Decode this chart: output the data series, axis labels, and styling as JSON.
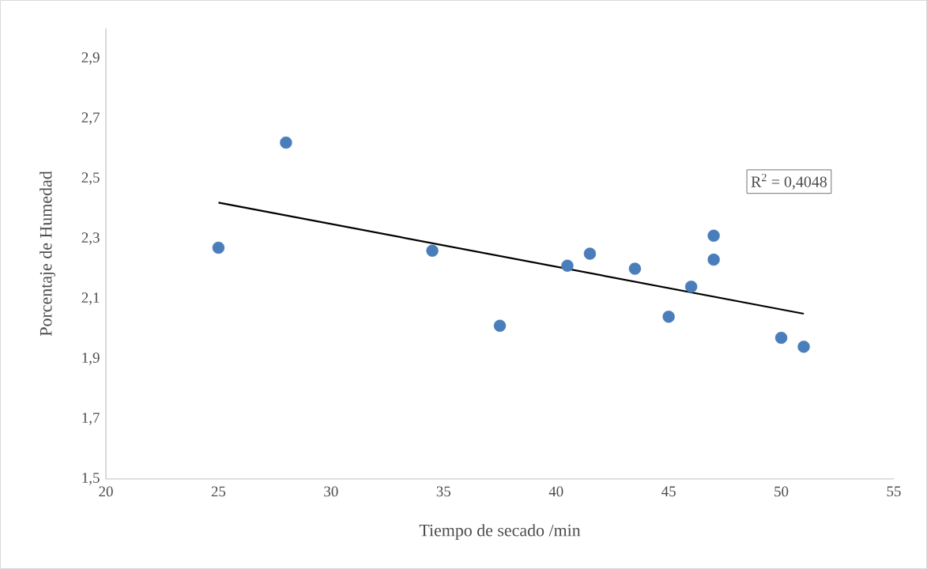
{
  "chart_data": {
    "type": "scatter",
    "xlabel": "Tiempo de secado /min",
    "ylabel": "Porcentaje de Humedad",
    "series": [
      {
        "color": "#4a7ebb",
        "marker": "circle",
        "x": [
          25,
          28,
          34.5,
          37.5,
          40.5,
          41.5,
          43.5,
          45,
          46,
          47,
          47,
          50,
          51
        ],
        "values": [
          2.27,
          2.62,
          2.26,
          2.01,
          2.21,
          2.25,
          2.2,
          2.04,
          2.14,
          2.31,
          2.23,
          1.97,
          1.94
        ]
      },
      {
        "type": "line",
        "color": "#000000",
        "marker": "none",
        "x": [
          25,
          51
        ],
        "values": [
          2.42,
          2.05
        ]
      }
    ],
    "annotations": [
      "R$^{2}$ = 0,4048"
    ],
    "xlim": [
      20,
      55
    ],
    "xticks": [
      20,
      25,
      30,
      35,
      40,
      45,
      50,
      55
    ],
    "ylim": [
      1.5,
      3.0
    ],
    "yticks": [
      {
        "value": 1.5,
        "label": "1,5"
      },
      {
        "value": 1.7,
        "label": "1,7"
      },
      {
        "value": 1.9,
        "label": "1,9"
      },
      {
        "value": 2.1,
        "label": "2,1"
      },
      {
        "value": 2.3,
        "label": "2,3"
      },
      {
        "value": 2.5,
        "label": "2,5"
      },
      {
        "value": 2.7,
        "label": "2,7"
      },
      {
        "value": 2.9,
        "label": "2,9"
      }
    ],
    "grid": false
  }
}
